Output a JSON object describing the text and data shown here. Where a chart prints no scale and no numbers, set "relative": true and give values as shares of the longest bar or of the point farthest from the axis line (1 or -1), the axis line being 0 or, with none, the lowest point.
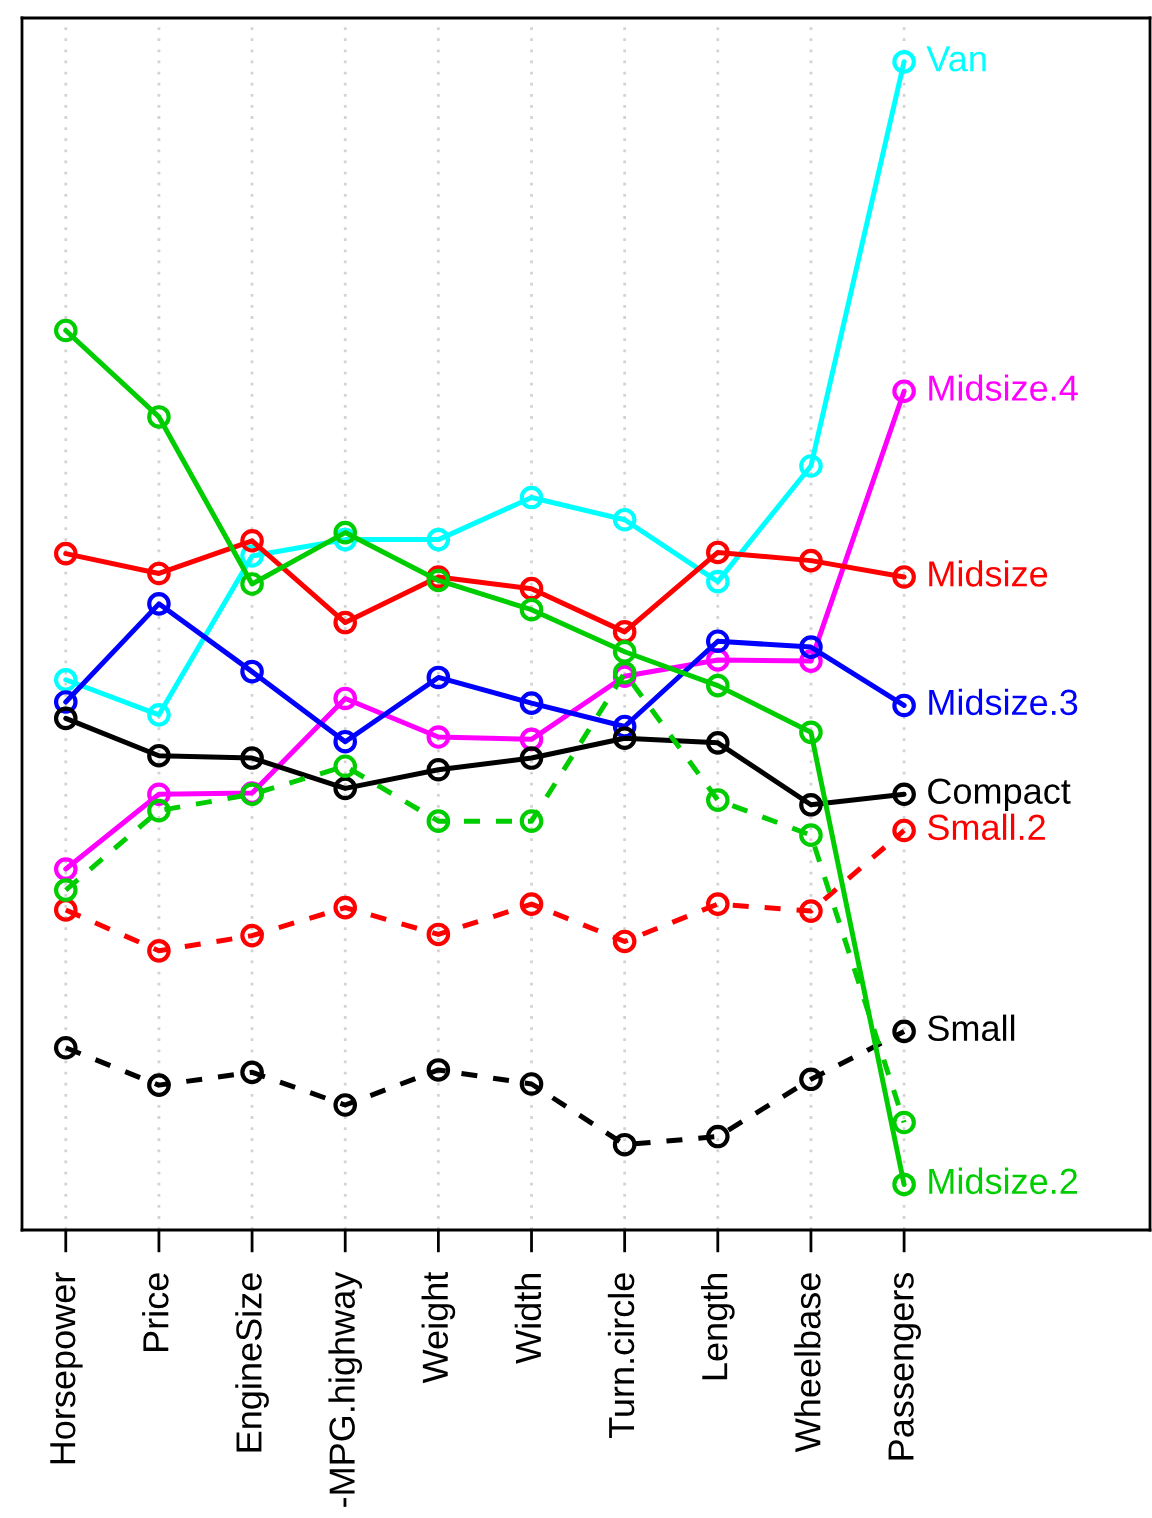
{
  "chart_data": {
    "type": "line",
    "relative": true,
    "grid": "x",
    "marker": "circle",
    "tick_labels": "x",
    "categories": [
      "Horsepower",
      "Price",
      "EngineSize",
      "-MPG.highway",
      "Weight",
      "Width",
      "Turn.circle",
      "Length",
      "Wheelbase",
      "Passengers"
    ],
    "series": [
      {
        "name": "Van",
        "color": "#00ffff",
        "line_style": "solid",
        "values": [
          0.471,
          0.441,
          0.577,
          0.591,
          0.591,
          0.627,
          0.608,
          0.555,
          0.654,
          1.0
        ]
      },
      {
        "name": "Midsize.4",
        "color": "#ff00ff",
        "line_style": "solid",
        "values": [
          0.309,
          0.373,
          0.374,
          0.455,
          0.422,
          0.42,
          0.474,
          0.488,
          0.487,
          0.718
        ]
      },
      {
        "name": "Midsize",
        "color": "#ff0000",
        "line_style": "solid",
        "values": [
          0.579,
          0.562,
          0.59,
          0.52,
          0.559,
          0.549,
          0.512,
          0.58,
          0.573,
          0.559
        ]
      },
      {
        "name": "Midsize.3",
        "color": "#0000ff",
        "line_style": "solid",
        "values": [
          0.452,
          0.536,
          0.478,
          0.418,
          0.473,
          0.451,
          0.431,
          0.504,
          0.499,
          0.449
        ]
      },
      {
        "name": "Compact",
        "color": "#000000",
        "line_style": "solid",
        "values": [
          0.438,
          0.406,
          0.404,
          0.378,
          0.394,
          0.404,
          0.421,
          0.417,
          0.364,
          0.373
        ]
      },
      {
        "name": "Small.2",
        "color": "#ff0000",
        "line_style": "dashed",
        "values": [
          0.274,
          0.239,
          0.252,
          0.276,
          0.253,
          0.279,
          0.247,
          0.279,
          0.273,
          0.342
        ]
      },
      {
        "name": "Small",
        "color": "#000000",
        "line_style": "dashed",
        "values": [
          0.156,
          0.124,
          0.135,
          0.107,
          0.137,
          0.125,
          0.073,
          0.08,
          0.129,
          0.17
        ]
      },
      {
        "color": "#00cd00",
        "line_style": "dashed",
        "values": [
          0.291,
          0.359,
          0.373,
          0.397,
          0.35,
          0.35,
          0.477,
          0.368,
          0.338,
          0.092
        ]
      },
      {
        "name": "Midsize.2",
        "color": "#00cd00",
        "line_style": "solid",
        "values": [
          0.77,
          0.696,
          0.553,
          0.597,
          0.556,
          0.531,
          0.495,
          0.466,
          0.426,
          0.039
        ]
      }
    ]
  }
}
